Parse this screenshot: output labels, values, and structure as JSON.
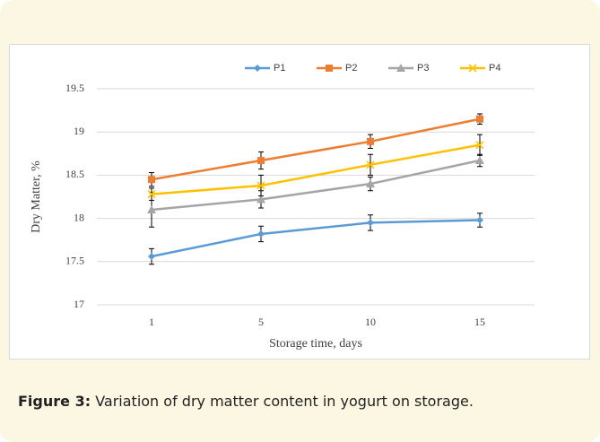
{
  "chart_data": {
    "type": "line",
    "xlabel": "Storage time, days",
    "ylabel": "Dry Matter, %",
    "categories": [
      "1",
      "5",
      "10",
      "15"
    ],
    "series": [
      {
        "name": "P1",
        "color": "#5b9bd5",
        "marker": "diamond",
        "values": [
          17.56,
          17.82,
          17.95,
          17.98
        ],
        "errors": [
          0.09,
          0.09,
          0.09,
          0.08
        ]
      },
      {
        "name": "P2",
        "color": "#ed7d31",
        "marker": "square",
        "values": [
          18.45,
          18.67,
          18.89,
          19.15
        ],
        "errors": [
          0.08,
          0.1,
          0.08,
          0.06
        ]
      },
      {
        "name": "P3",
        "color": "#a5a5a5",
        "marker": "triangle",
        "values": [
          18.1,
          18.22,
          18.4,
          18.67
        ],
        "errors": [
          0.2,
          0.1,
          0.08,
          0.07
        ]
      },
      {
        "name": "P4",
        "color": "#ffc000",
        "marker": "x",
        "values": [
          18.28,
          18.38,
          18.62,
          18.85
        ],
        "errors": [
          0.07,
          0.12,
          0.12,
          0.12
        ]
      }
    ],
    "ylim": [
      17,
      19.5
    ],
    "yticks": [
      17,
      17.5,
      18,
      18.5,
      19,
      19.5
    ],
    "grid": true,
    "legend": "top"
  },
  "figure_label": "Figure 3:",
  "caption": "Variation of dry matter content in yogurt on storage."
}
